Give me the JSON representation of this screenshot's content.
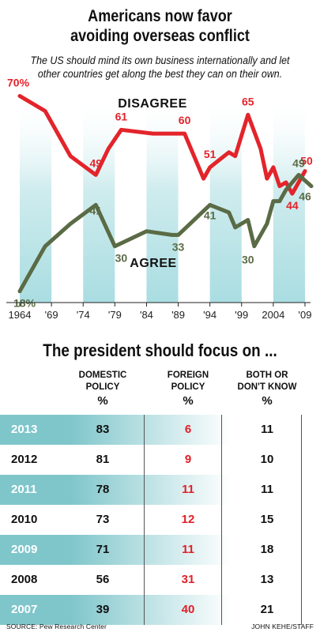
{
  "header": {
    "title_line1": "Americans now favor",
    "title_line2": "avoiding overseas conflict",
    "subtitle_line1": "The US should mind its own business internationally and let",
    "subtitle_line2": "other countries get along the best they can on their own."
  },
  "colors": {
    "disagree": "#e3242b",
    "agree": "#5a6b45",
    "band": "#a9dde1",
    "row_shade": "#7fc6cb"
  },
  "chart_data": [
    {
      "type": "line",
      "title": "",
      "xlabel": "",
      "ylabel": "",
      "x_tick_labels": [
        "1964",
        "'69",
        "'74",
        "'79",
        "'84",
        "'89",
        "'94",
        "'99",
        "2004",
        "'09"
      ],
      "x_tick_years": [
        1964,
        1969,
        1974,
        1979,
        1984,
        1989,
        1994,
        1999,
        2004,
        2009
      ],
      "xlim": [
        1963,
        2010
      ],
      "ylim": [
        15,
        72
      ],
      "grid": false,
      "series": [
        {
          "name": "DISAGREE",
          "color": "#e3242b",
          "points": [
            [
              1964,
              70
            ],
            [
              1968,
              66
            ],
            [
              1972,
              54
            ],
            [
              1976,
              49
            ],
            [
              1978,
              56
            ],
            [
              1980,
              61
            ],
            [
              1985,
              60
            ],
            [
              1988,
              60
            ],
            [
              1990,
              60
            ],
            [
              1993,
              48
            ],
            [
              1994,
              51
            ],
            [
              1997,
              55
            ],
            [
              1998,
              54
            ],
            [
              2000,
              65
            ],
            [
              2002,
              56
            ],
            [
              2003,
              48
            ],
            [
              2004,
              51
            ],
            [
              2005,
              46
            ],
            [
              2006,
              47
            ],
            [
              2007,
              44
            ],
            [
              2009,
              50
            ]
          ],
          "labels": [
            {
              "year": 1964,
              "value": 70,
              "text": "70%"
            },
            {
              "year": 1976,
              "value": 49,
              "text": "49"
            },
            {
              "year": 1980,
              "value": 61,
              "text": "61"
            },
            {
              "year": 1990,
              "value": 60,
              "text": "60"
            },
            {
              "year": 1994,
              "value": 51,
              "text": "51"
            },
            {
              "year": 2000,
              "value": 65,
              "text": "65"
            },
            {
              "year": 2007,
              "value": 44,
              "text": "44"
            },
            {
              "year": 2009,
              "value": 50,
              "text": "50"
            }
          ]
        },
        {
          "name": "AGREE",
          "color": "#5a6b45",
          "points": [
            [
              1964,
              18
            ],
            [
              1968,
              30
            ],
            [
              1972,
              36
            ],
            [
              1976,
              41
            ],
            [
              1979,
              30
            ],
            [
              1984,
              34
            ],
            [
              1988,
              33
            ],
            [
              1989,
              33
            ],
            [
              1994,
              41
            ],
            [
              1997,
              39
            ],
            [
              1998,
              35
            ],
            [
              2000,
              37
            ],
            [
              2001,
              30
            ],
            [
              2003,
              36
            ],
            [
              2004,
              42
            ],
            [
              2005,
              42
            ],
            [
              2006,
              45
            ],
            [
              2008,
              49
            ],
            [
              2010,
              46
            ]
          ],
          "labels": [
            {
              "year": 1964,
              "value": 18,
              "text": "18%"
            },
            {
              "year": 1976,
              "value": 41,
              "text": "41"
            },
            {
              "year": 1980,
              "value": 30,
              "text": "30"
            },
            {
              "year": 1989,
              "value": 33,
              "text": "33"
            },
            {
              "year": 1994,
              "value": 41,
              "text": "41"
            },
            {
              "year": 2000,
              "value": 30,
              "text": "30"
            },
            {
              "year": 2008,
              "value": 49,
              "text": "49"
            },
            {
              "year": 2010,
              "value": 46,
              "text": "46"
            }
          ]
        }
      ],
      "series_labels": {
        "disagree": "DISAGREE",
        "agree": "AGREE"
      }
    },
    {
      "type": "table",
      "title": "The president should focus on ...",
      "columns": [
        {
          "line1": "DOMESTIC",
          "line2": "POLICY",
          "unit": "%"
        },
        {
          "line1": "FOREIGN",
          "line2": "POLICY",
          "unit": "%"
        },
        {
          "line1": "BOTH OR",
          "line2": "DON'T KNOW",
          "unit": "%"
        }
      ],
      "rows": [
        {
          "year": "2013",
          "domestic": "83",
          "foreign": "6",
          "both": "11"
        },
        {
          "year": "2012",
          "domestic": "81",
          "foreign": "9",
          "both": "10"
        },
        {
          "year": "2011",
          "domestic": "78",
          "foreign": "11",
          "both": "11"
        },
        {
          "year": "2010",
          "domestic": "73",
          "foreign": "12",
          "both": "15"
        },
        {
          "year": "2009",
          "domestic": "71",
          "foreign": "11",
          "both": "18"
        },
        {
          "year": "2008",
          "domestic": "56",
          "foreign": "31",
          "both": "13"
        },
        {
          "year": "2007",
          "domestic": "39",
          "foreign": "40",
          "both": "21"
        }
      ]
    }
  ],
  "footer": {
    "source": "SOURCE: Pew Research Center",
    "credit": "JOHN KEHE/STAFF"
  }
}
